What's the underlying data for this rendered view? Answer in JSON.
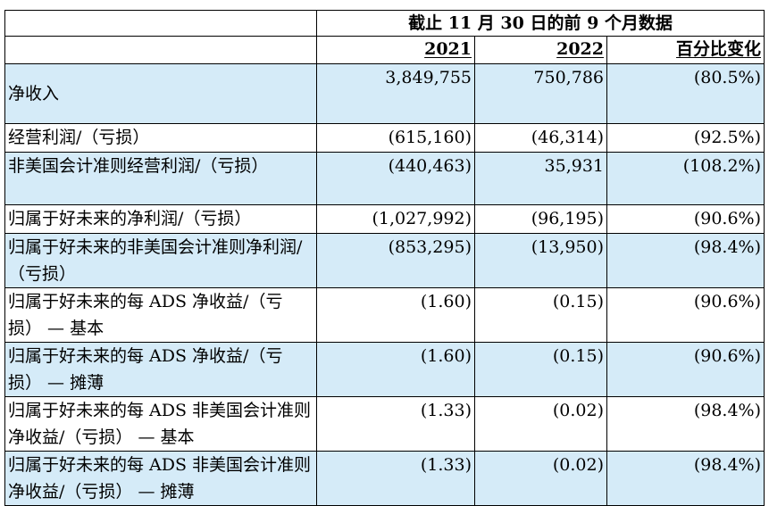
{
  "table": {
    "period_header": "截止 11 月 30 日的前 9 个月数据",
    "columns": [
      "2021",
      "2022",
      "百分比变化"
    ],
    "rows": [
      {
        "label": "净收入",
        "v2021": "3,849,755",
        "v2022": "750,786",
        "change": "(80.5%)"
      },
      {
        "label": "经营利润/（亏损）",
        "v2021": "(615,160)",
        "v2022": "(46,314)",
        "change": "(92.5%)"
      },
      {
        "label": "非美国会计准则经营利润/（亏损）",
        "v2021": "(440,463)",
        "v2022": "35,931",
        "change": "(108.2%)"
      },
      {
        "label": "归属于好未来的净利润/（亏损）",
        "v2021": "(1,027,992)",
        "v2022": "(96,195)",
        "change": "(90.6%)"
      },
      {
        "label": "归属于好未来的非美国会计准则净利润/（亏损）",
        "v2021": "(853,295)",
        "v2022": "(13,950)",
        "change": "(98.4%)"
      },
      {
        "label": "归属于好未来的每 ADS 净收益/（亏损） — 基本",
        "v2021": "(1.60)",
        "v2022": "(0.15)",
        "change": "(90.6%)"
      },
      {
        "label": "归属于好未来的每 ADS 净收益/（亏损） — 摊薄",
        "v2021": "(1.60)",
        "v2022": "(0.15)",
        "change": "(90.6%)"
      },
      {
        "label": "归属于好未来的每 ADS 非美国会计准则净收益/（亏损） — 基本",
        "v2021": "(1.33)",
        "v2022": "(0.02)",
        "change": "(98.4%)"
      },
      {
        "label": "归属于好未来的每 ADS 非美国会计准则净收益/（亏损） — 摊薄",
        "v2021": "(1.33)",
        "v2022": "(0.02)",
        "change": "(98.4%)"
      }
    ]
  },
  "colors": {
    "row_shade": "#d5ebf8",
    "border": "#000000"
  }
}
